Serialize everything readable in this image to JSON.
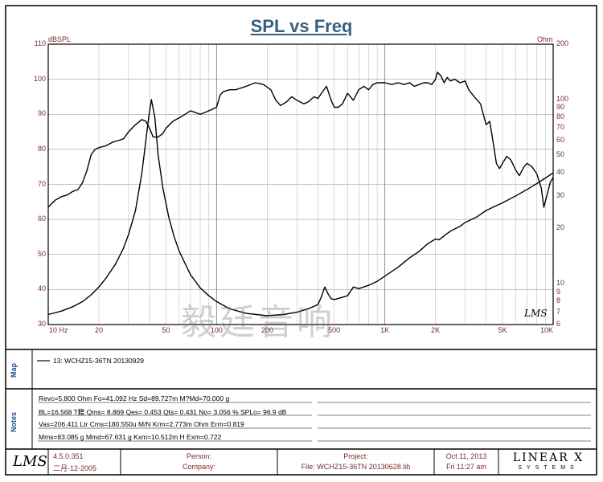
{
  "title": "SPL vs Freq",
  "axes": {
    "left_unit": "dBSPL",
    "right_unit": "Ohm"
  },
  "signature_mark": "LMS",
  "watermark": "毅廷音响",
  "map": {
    "label": "Map",
    "legend": "13: WCHZ15-36TN  20130929"
  },
  "notes": {
    "label": "Notes",
    "lines": [
      "Revc=5.800 Ohm  Fo=41.092 Hz  Sd=89.727m M?Md=70.000 g",
      "BL=16.568 T籍  Qms= 8.869  Qes= 0.453  Qts= 0.431  No= 3.056 %  SPLo= 96.9 dB",
      "Vas=206.411 Ltr  Cms=180.550u M/N  Krm=2.773m Ohm  Erm=0.819",
      "Mms=83.085 g  Mmd=67.631 g  Kxm=10.512m H  Exm=0.722"
    ]
  },
  "footer": {
    "logo": "LMS",
    "version": "4.5.0.351",
    "version_date": "二月-12-2005",
    "person_label": "Person:",
    "company_label": "Company:",
    "project_label": "Project:",
    "file_label": "File:",
    "file_name": "WCHZ15-36TN  20130628.lib",
    "date": "Oct 11, 2013",
    "time": "Fri 11:27 am",
    "brand_top": "LINEAR X",
    "brand_bottom": "SYSTEMS"
  },
  "chart_data": {
    "type": "line",
    "title": "SPL vs Freq",
    "x_scale": "log",
    "xlim": [
      10,
      10000
    ],
    "x_ticks": [
      {
        "v": 10,
        "label": "10  Hz"
      },
      {
        "v": 20,
        "label": "20"
      },
      {
        "v": 50,
        "label": "50"
      },
      {
        "v": 100,
        "label": "100"
      },
      {
        "v": 200,
        "label": "200"
      },
      {
        "v": 500,
        "label": "500"
      },
      {
        "v": 1000,
        "label": "1K"
      },
      {
        "v": 2000,
        "label": "2K"
      },
      {
        "v": 5000,
        "label": "5K"
      },
      {
        "v": 10000,
        "label": "10K"
      }
    ],
    "y_left": {
      "unit": "dBSPL",
      "lim": [
        30,
        110
      ],
      "ticks": [
        30,
        40,
        50,
        60,
        70,
        80,
        90,
        100,
        110
      ]
    },
    "y_right": {
      "unit": "Ohm",
      "scale": "log",
      "lim": [
        6,
        200
      ],
      "ticks": [
        {
          "v": 6,
          "label": "6"
        },
        {
          "v": 7,
          "label": "7"
        },
        {
          "v": 8,
          "label": "8"
        },
        {
          "v": 9,
          "label": "9"
        },
        {
          "v": 10,
          "label": "10"
        },
        {
          "v": 20,
          "label": "20"
        },
        {
          "v": 30,
          "label": "30"
        },
        {
          "v": 40,
          "label": "40"
        },
        {
          "v": 50,
          "label": "50"
        },
        {
          "v": 60,
          "label": "60"
        },
        {
          "v": 70,
          "label": "70"
        },
        {
          "v": 80,
          "label": "80"
        },
        {
          "v": 90,
          "label": "90"
        },
        {
          "v": 100,
          "label": "100"
        },
        {
          "v": 200,
          "label": "200"
        }
      ]
    },
    "grid": true,
    "series": [
      {
        "name": "13: WCHZ15-36TN  20130929",
        "axis": "left",
        "points": [
          [
            10,
            63.5
          ],
          [
            11,
            65.5
          ],
          [
            12,
            66.5
          ],
          [
            13,
            67
          ],
          [
            14,
            68
          ],
          [
            15,
            68.5
          ],
          [
            16,
            70.5
          ],
          [
            17,
            74
          ],
          [
            18,
            78.5
          ],
          [
            19,
            80
          ],
          [
            20,
            80.5
          ],
          [
            22,
            81
          ],
          [
            24,
            82
          ],
          [
            26,
            82.5
          ],
          [
            28,
            83
          ],
          [
            30,
            85
          ],
          [
            33,
            87
          ],
          [
            36,
            88.5
          ],
          [
            38,
            88
          ],
          [
            40,
            86
          ],
          [
            42,
            83.5
          ],
          [
            45,
            83.5
          ],
          [
            48,
            84.5
          ],
          [
            50,
            86
          ],
          [
            55,
            88
          ],
          [
            60,
            89
          ],
          [
            65,
            90
          ],
          [
            70,
            91
          ],
          [
            75,
            90.5
          ],
          [
            80,
            90
          ],
          [
            85,
            90.5
          ],
          [
            90,
            91
          ],
          [
            95,
            91.5
          ],
          [
            100,
            92
          ],
          [
            105,
            95.5
          ],
          [
            110,
            96.5
          ],
          [
            120,
            97
          ],
          [
            130,
            97
          ],
          [
            140,
            97.5
          ],
          [
            150,
            98
          ],
          [
            170,
            99
          ],
          [
            190,
            98.5
          ],
          [
            210,
            97
          ],
          [
            225,
            94
          ],
          [
            240,
            92.5
          ],
          [
            260,
            93.5
          ],
          [
            280,
            95
          ],
          [
            300,
            94
          ],
          [
            330,
            93
          ],
          [
            350,
            93.5
          ],
          [
            380,
            95
          ],
          [
            400,
            94.5
          ],
          [
            420,
            96
          ],
          [
            450,
            98
          ],
          [
            480,
            94
          ],
          [
            500,
            92
          ],
          [
            530,
            92
          ],
          [
            560,
            93
          ],
          [
            600,
            96
          ],
          [
            650,
            94
          ],
          [
            700,
            97
          ],
          [
            750,
            98
          ],
          [
            800,
            97
          ],
          [
            850,
            98.5
          ],
          [
            900,
            99
          ],
          [
            1000,
            99
          ],
          [
            1100,
            98.5
          ],
          [
            1200,
            99
          ],
          [
            1300,
            98.5
          ],
          [
            1400,
            99
          ],
          [
            1500,
            98
          ],
          [
            1600,
            98.5
          ],
          [
            1700,
            99
          ],
          [
            1800,
            99
          ],
          [
            1900,
            98.5
          ],
          [
            2000,
            100
          ],
          [
            2050,
            102
          ],
          [
            2150,
            101
          ],
          [
            2250,
            99
          ],
          [
            2350,
            100.5
          ],
          [
            2450,
            99.5
          ],
          [
            2600,
            100
          ],
          [
            2800,
            99
          ],
          [
            3000,
            99.5
          ],
          [
            3150,
            97
          ],
          [
            3400,
            95
          ],
          [
            3700,
            93
          ],
          [
            4000,
            87
          ],
          [
            4200,
            88
          ],
          [
            4400,
            82
          ],
          [
            4600,
            76
          ],
          [
            4800,
            74.5
          ],
          [
            5000,
            76
          ],
          [
            5300,
            78
          ],
          [
            5600,
            77
          ],
          [
            6000,
            74
          ],
          [
            6300,
            72.5
          ],
          [
            6700,
            75
          ],
          [
            7000,
            76
          ],
          [
            7500,
            75
          ],
          [
            8000,
            73
          ],
          [
            8500,
            69
          ],
          [
            8800,
            63.5
          ],
          [
            9200,
            67
          ],
          [
            9600,
            70.5
          ],
          [
            10000,
            72
          ]
        ]
      },
      {
        "name": "Impedance",
        "axis": "right",
        "points": [
          [
            10,
            6.8
          ],
          [
            12,
            7.1
          ],
          [
            14,
            7.5
          ],
          [
            16,
            8
          ],
          [
            18,
            8.7
          ],
          [
            20,
            9.6
          ],
          [
            22,
            10.7
          ],
          [
            25,
            12.7
          ],
          [
            28,
            15.6
          ],
          [
            30,
            18.5
          ],
          [
            33,
            25
          ],
          [
            36,
            40
          ],
          [
            38,
            60
          ],
          [
            39.5,
            80
          ],
          [
            41,
            100
          ],
          [
            43,
            80
          ],
          [
            45,
            50
          ],
          [
            48,
            33
          ],
          [
            52,
            23
          ],
          [
            56,
            18
          ],
          [
            60,
            15
          ],
          [
            70,
            11.2
          ],
          [
            80,
            9.5
          ],
          [
            90,
            8.6
          ],
          [
            100,
            8
          ],
          [
            120,
            7.3
          ],
          [
            150,
            6.9
          ],
          [
            200,
            6.7
          ],
          [
            250,
            6.8
          ],
          [
            300,
            7
          ],
          [
            350,
            7.3
          ],
          [
            400,
            7.7
          ],
          [
            420,
            8.5
          ],
          [
            440,
            9.6
          ],
          [
            460,
            8.8
          ],
          [
            480,
            8.3
          ],
          [
            500,
            8.2
          ],
          [
            600,
            8.6
          ],
          [
            650,
            9.6
          ],
          [
            700,
            9.4
          ],
          [
            800,
            9.8
          ],
          [
            900,
            10.3
          ],
          [
            1000,
            11
          ],
          [
            1200,
            12.3
          ],
          [
            1400,
            13.8
          ],
          [
            1600,
            15
          ],
          [
            1800,
            16.5
          ],
          [
            2000,
            17.5
          ],
          [
            2100,
            17.3
          ],
          [
            2300,
            18.5
          ],
          [
            2500,
            19.5
          ],
          [
            2800,
            20.5
          ],
          [
            3000,
            21.5
          ],
          [
            3500,
            23
          ],
          [
            4000,
            25
          ],
          [
            4500,
            26.3
          ],
          [
            5000,
            27.5
          ],
          [
            6000,
            30
          ],
          [
            7000,
            32.5
          ],
          [
            8000,
            35
          ],
          [
            9000,
            37.5
          ],
          [
            10000,
            40
          ]
        ]
      }
    ]
  }
}
